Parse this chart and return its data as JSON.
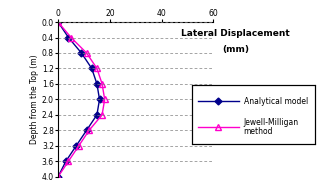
{
  "analytical_depth": [
    0,
    0.4,
    0.8,
    1.2,
    1.6,
    2.0,
    2.4,
    2.8,
    3.2,
    3.6,
    4.0
  ],
  "analytical_disp": [
    0,
    4,
    9,
    13,
    15,
    16,
    15,
    11,
    7,
    3,
    0
  ],
  "jewell_depth": [
    0,
    0.4,
    0.8,
    1.2,
    1.6,
    2.0,
    2.4,
    2.8,
    3.2,
    3.6,
    4.0
  ],
  "jewell_disp": [
    0,
    5,
    11,
    15,
    17,
    18,
    17,
    12,
    8,
    4,
    0
  ],
  "analytical_color": "#00008B",
  "jewell_color": "#FF00CC",
  "analytical_label": "Analytical model",
  "jewell_label": "Jewell-Milligan\nmethod",
  "right_label_line1": "Lateral Displacement",
  "right_label_line2": "(mm)",
  "ylabel": "Depth from the Top (m)",
  "xlim": [
    0,
    60
  ],
  "ylim": [
    4,
    0
  ],
  "xticks": [
    0,
    20,
    40,
    60
  ],
  "yticks": [
    0,
    0.4,
    0.8,
    1.2,
    1.6,
    2.0,
    2.4,
    2.8,
    3.2,
    3.6,
    4.0
  ],
  "figsize": [
    3.23,
    1.84
  ],
  "dpi": 100
}
